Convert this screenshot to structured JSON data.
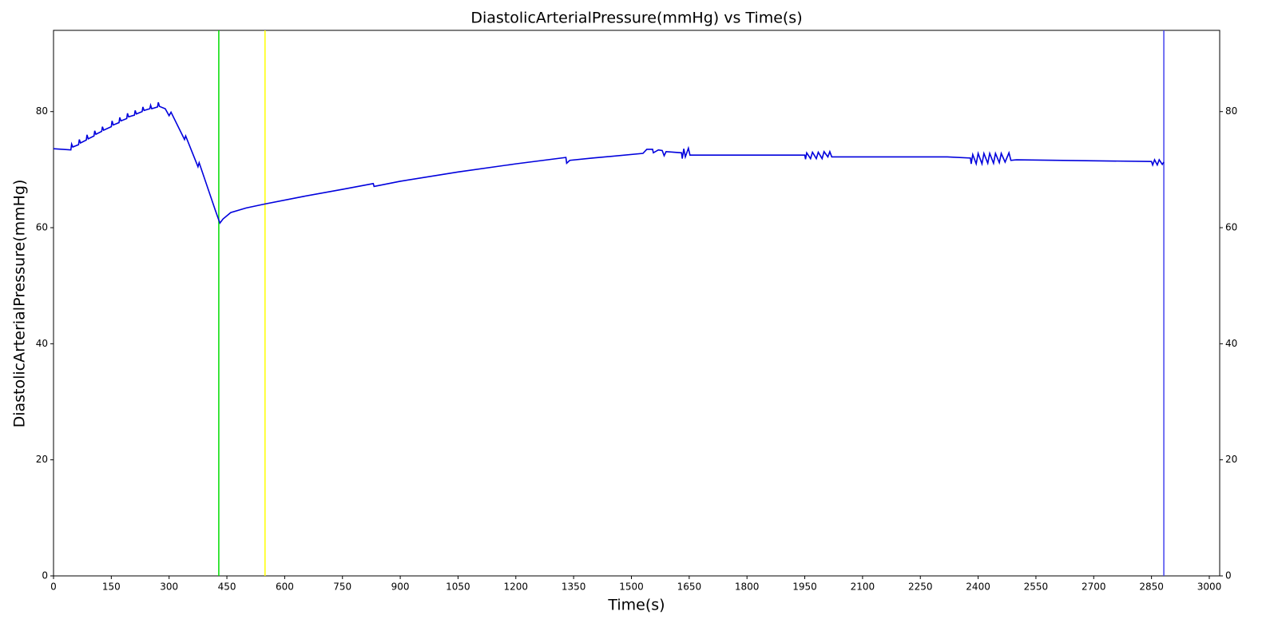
{
  "chart_data": {
    "type": "line",
    "title": "DiastolicArterialPressure(mmHg) vs Time(s)",
    "xlabel": "Time(s)",
    "ylabel": "DiastolicArterialPressure(mmHg)",
    "xlim": [
      0,
      3027
    ],
    "ylim": [
      0,
      94
    ],
    "y2lim": [
      0,
      94
    ],
    "xticks": [
      0,
      150,
      300,
      450,
      600,
      750,
      900,
      1050,
      1200,
      1350,
      1500,
      1650,
      1800,
      1950,
      2100,
      2250,
      2400,
      2550,
      2700,
      2850,
      3000
    ],
    "yticks": [
      0,
      20,
      40,
      60,
      80
    ],
    "y2ticks": [
      0,
      20,
      40,
      60,
      80
    ],
    "vlines": [
      {
        "x": 429,
        "color": "#00dd00"
      },
      {
        "x": 549,
        "color": "#ffff00"
      },
      {
        "x": 2882,
        "color": "#4444ee"
      }
    ],
    "series": [
      {
        "color": "#0000dd",
        "x": [
          0,
          45,
          47,
          50,
          65,
          67,
          70,
          85,
          87,
          90,
          105,
          107,
          110,
          125,
          127,
          130,
          150,
          152,
          155,
          170,
          172,
          175,
          190,
          192,
          195,
          210,
          212,
          215,
          230,
          232,
          235,
          250,
          252,
          255,
          270,
          272,
          275,
          290,
          300,
          305,
          340,
          343,
          375,
          378,
          420,
          428,
          432,
          440,
          460,
          500,
          550,
          650,
          750,
          830,
          832,
          900,
          1050,
          1200,
          1330,
          1332,
          1340,
          1400,
          1530,
          1540,
          1555,
          1557,
          1570,
          1580,
          1585,
          1590,
          1630,
          1632,
          1636,
          1640,
          1648,
          1652,
          1950,
          1952,
          1955,
          1965,
          1970,
          1980,
          1985,
          1995,
          2000,
          2010,
          2015,
          2020,
          2320,
          2380,
          2382,
          2386,
          2395,
          2400,
          2410,
          2415,
          2425,
          2430,
          2440,
          2445,
          2455,
          2460,
          2470,
          2480,
          2485,
          2500,
          2850,
          2853,
          2858,
          2865,
          2870,
          2878,
          2882
        ],
        "values": [
          73.6,
          73.4,
          74.4,
          73.9,
          74.3,
          75.2,
          74.6,
          75.1,
          76,
          75.3,
          75.8,
          76.7,
          76.1,
          76.6,
          77.4,
          76.8,
          77.4,
          78.4,
          77.7,
          78.1,
          79,
          78.4,
          78.8,
          79.7,
          79.1,
          79.4,
          80.2,
          79.6,
          80,
          80.8,
          80.2,
          80.5,
          81.1,
          80.5,
          80.8,
          81.6,
          80.9,
          80.5,
          79.3,
          79.9,
          75.2,
          75.8,
          70.5,
          71.2,
          63,
          61.5,
          60.8,
          61.5,
          62.6,
          63.4,
          64.1,
          65.4,
          66.6,
          67.6,
          67.1,
          68,
          69.6,
          71,
          72.1,
          71.1,
          71.6,
          72,
          72.8,
          73.5,
          73.5,
          72.9,
          73.4,
          73.3,
          72.4,
          73.1,
          72.9,
          71.9,
          73.6,
          72.2,
          73.7,
          72.5,
          72.5,
          71.8,
          72.9,
          71.9,
          73,
          71.9,
          73,
          71.9,
          73.1,
          72.2,
          73.1,
          72.2,
          72.2,
          72,
          71,
          72.6,
          71,
          72.8,
          71,
          72.8,
          71.1,
          72.8,
          71.1,
          72.8,
          71.2,
          72.8,
          71.3,
          72.9,
          71.6,
          71.7,
          71.4,
          70.8,
          71.7,
          70.8,
          71.7,
          70.9,
          71.3
        ]
      }
    ]
  }
}
